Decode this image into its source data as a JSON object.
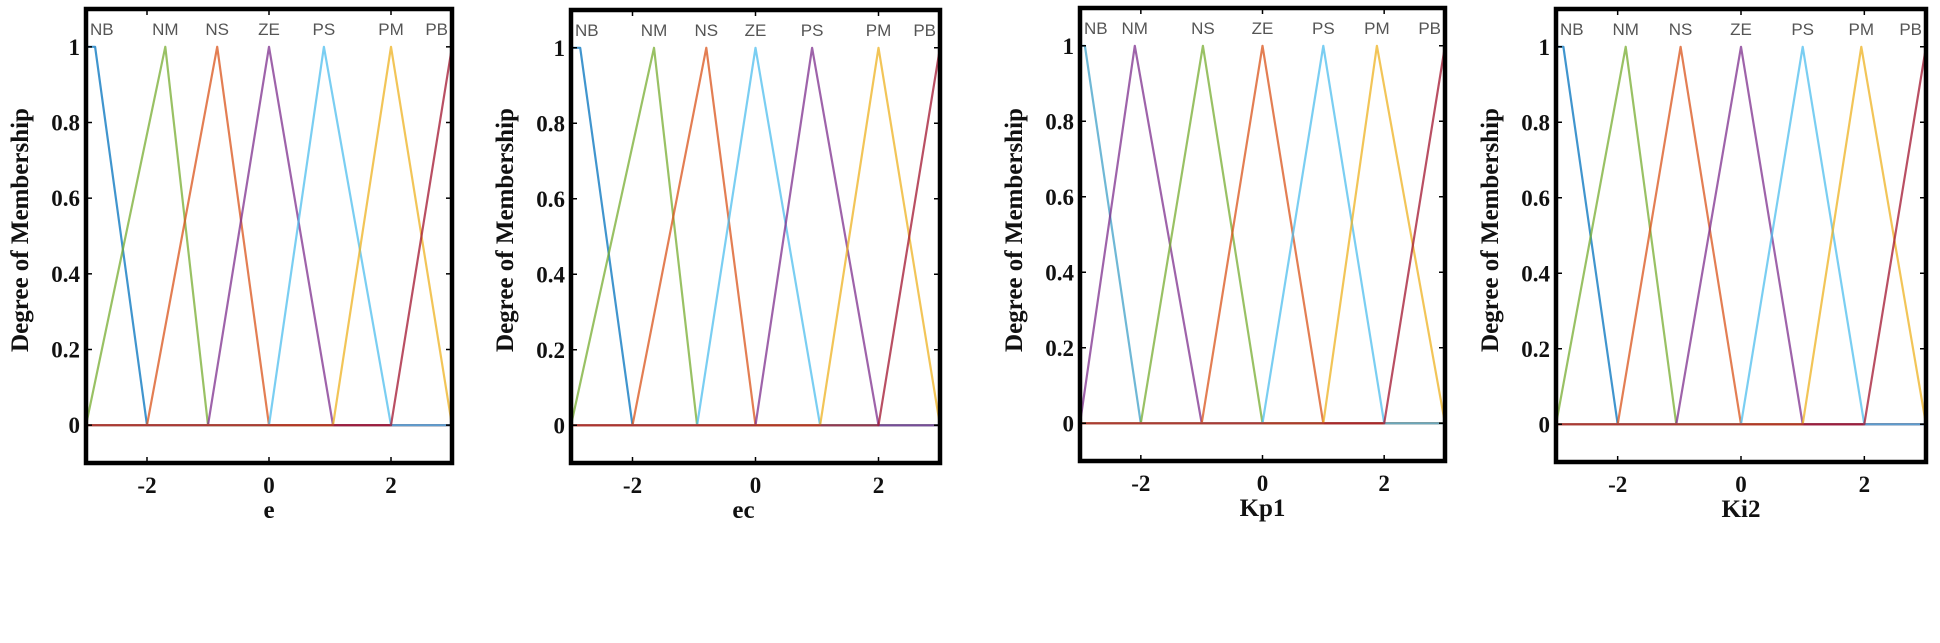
{
  "chart_data": [
    {
      "type": "line",
      "xlabel": "e",
      "ylabel": "Degree of Membership",
      "xlim": [
        -3,
        3
      ],
      "ylim": [
        -0.1,
        1.1
      ],
      "xticks": [
        -2,
        0,
        2
      ],
      "xtick_labels": [
        "-2",
        "0",
        "2"
      ],
      "yticks": [
        0,
        0.2,
        0.4,
        0.6,
        0.8,
        1
      ],
      "ytick_labels": [
        "0",
        "0.2",
        "0.4",
        "0.6",
        "0.8",
        "1"
      ],
      "grid": false,
      "series": [
        {
          "name": "NB",
          "shape": "trapmf",
          "params": [
            -3,
            -3,
            -2.85,
            -2
          ],
          "color": "#0072BD"
        },
        {
          "name": "NM",
          "shape": "trimf",
          "params": [
            -3,
            -1.7,
            -1
          ],
          "color": "#77AC30"
        },
        {
          "name": "NS",
          "shape": "trimf",
          "params": [
            -2,
            -0.85,
            0
          ],
          "color": "#D95319"
        },
        {
          "name": "ZE",
          "shape": "trimf",
          "params": [
            -1,
            0,
            1.05
          ],
          "color": "#7E2F8E"
        },
        {
          "name": "PS",
          "shape": "trimf",
          "params": [
            0,
            0.9,
            2
          ],
          "color": "#4DBEEE"
        },
        {
          "name": "PM",
          "shape": "trimf",
          "params": [
            1.05,
            2,
            3
          ],
          "color": "#EDB120"
        },
        {
          "name": "PB",
          "shape": "trimf",
          "params": [
            2,
            3,
            3
          ],
          "color": "#A2142F"
        }
      ]
    },
    {
      "type": "line",
      "xlabel": "ec",
      "ylabel": "Degree of Membership",
      "xlim": [
        -3,
        3
      ],
      "ylim": [
        -0.1,
        1.1
      ],
      "xticks": [
        -2,
        0,
        2
      ],
      "xtick_labels": [
        "-2",
        "0",
        "2"
      ],
      "yticks": [
        0,
        0.2,
        0.4,
        0.6,
        0.8,
        1
      ],
      "ytick_labels": [
        "0",
        "0.2",
        "0.4",
        "0.6",
        "0.8",
        "1"
      ],
      "grid": false,
      "series": [
        {
          "name": "NB",
          "shape": "trapmf",
          "params": [
            -3,
            -3,
            -2.85,
            -2
          ],
          "color": "#0072BD"
        },
        {
          "name": "NM",
          "shape": "trimf",
          "params": [
            -3,
            -1.65,
            -0.95
          ],
          "color": "#77AC30"
        },
        {
          "name": "NS",
          "shape": "trimf",
          "params": [
            -2,
            -0.8,
            0
          ],
          "color": "#D95319"
        },
        {
          "name": "ZE",
          "shape": "trimf",
          "params": [
            -0.95,
            0,
            1.05
          ],
          "color": "#4DBEEE"
        },
        {
          "name": "PS",
          "shape": "trimf",
          "params": [
            0,
            0.92,
            2
          ],
          "color": "#7E2F8E"
        },
        {
          "name": "PM",
          "shape": "trimf",
          "params": [
            1.05,
            2,
            3
          ],
          "color": "#EDB120"
        },
        {
          "name": "PB",
          "shape": "trimf",
          "params": [
            2,
            3,
            3
          ],
          "color": "#A2142F"
        }
      ]
    },
    {
      "type": "line",
      "xlabel": "Kp1",
      "ylabel": "Degree of Membership",
      "xlim": [
        -3,
        3
      ],
      "ylim": [
        -0.1,
        1.1
      ],
      "xticks": [
        -2,
        0,
        2
      ],
      "xtick_labels": [
        "-2",
        "0",
        "2"
      ],
      "yticks": [
        0,
        0.2,
        0.4,
        0.6,
        0.8,
        1
      ],
      "ytick_labels": [
        "0",
        "0.2",
        "0.4",
        "0.6",
        "0.8",
        "1"
      ],
      "grid": false,
      "series": [
        {
          "name": "NB",
          "shape": "trapmf",
          "params": [
            -3,
            -3,
            -2.92,
            -2
          ],
          "color": "#3FA0C8"
        },
        {
          "name": "NM",
          "shape": "trimf",
          "params": [
            -3,
            -2.1,
            -1
          ],
          "color": "#7E2F8E"
        },
        {
          "name": "NS",
          "shape": "trimf",
          "params": [
            -2,
            -0.98,
            0
          ],
          "color": "#77AC30"
        },
        {
          "name": "ZE",
          "shape": "trimf",
          "params": [
            -1,
            0,
            1
          ],
          "color": "#D95319"
        },
        {
          "name": "PS",
          "shape": "trimf",
          "params": [
            0,
            1,
            2
          ],
          "color": "#4DBEEE"
        },
        {
          "name": "PM",
          "shape": "trimf",
          "params": [
            1,
            1.88,
            3
          ],
          "color": "#EDB120"
        },
        {
          "name": "PB",
          "shape": "trimf",
          "params": [
            2,
            3,
            3
          ],
          "color": "#A2142F"
        }
      ]
    },
    {
      "type": "line",
      "xlabel": "Ki2",
      "ylabel": "Degree of Membership",
      "xlim": [
        -3,
        3
      ],
      "ylim": [
        -0.1,
        1.1
      ],
      "xticks": [
        -2,
        0,
        2
      ],
      "xtick_labels": [
        "-2",
        "0",
        "2"
      ],
      "yticks": [
        0,
        0.2,
        0.4,
        0.6,
        0.8,
        1
      ],
      "ytick_labels": [
        "0",
        "0.2",
        "0.4",
        "0.6",
        "0.8",
        "1"
      ],
      "grid": false,
      "series": [
        {
          "name": "NB",
          "shape": "trapmf",
          "params": [
            -3,
            -3,
            -2.88,
            -2
          ],
          "color": "#0072BD"
        },
        {
          "name": "NM",
          "shape": "trimf",
          "params": [
            -3,
            -1.87,
            -1.05
          ],
          "color": "#77AC30"
        },
        {
          "name": "NS",
          "shape": "trimf",
          "params": [
            -2,
            -0.98,
            0
          ],
          "color": "#D95319"
        },
        {
          "name": "ZE",
          "shape": "trimf",
          "params": [
            -1.05,
            0,
            1
          ],
          "color": "#7E2F8E"
        },
        {
          "name": "PS",
          "shape": "trimf",
          "params": [
            0,
            1,
            2
          ],
          "color": "#4DBEEE"
        },
        {
          "name": "PM",
          "shape": "trimf",
          "params": [
            1,
            1.95,
            3
          ],
          "color": "#EDB120"
        },
        {
          "name": "PB",
          "shape": "trimf",
          "params": [
            2,
            3,
            3
          ],
          "color": "#A2142F"
        }
      ]
    }
  ]
}
